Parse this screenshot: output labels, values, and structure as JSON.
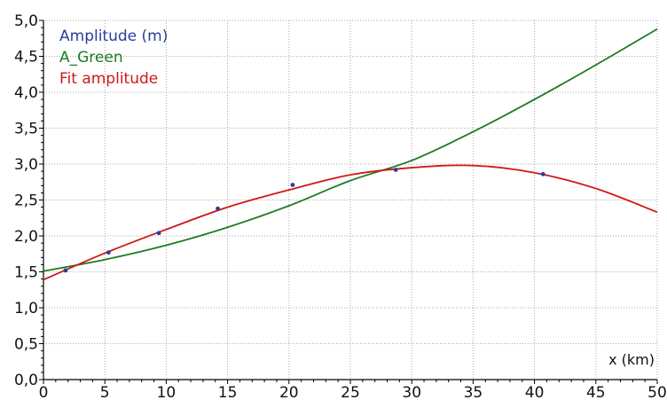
{
  "chart_data": {
    "type": "line",
    "xlabel": "x (km)",
    "ylabel": "",
    "xlim": [
      0,
      50
    ],
    "ylim": [
      0,
      5
    ],
    "grid": true,
    "legend_position": "top-left",
    "x_ticks": [
      "0",
      "5",
      "10",
      "15",
      "20",
      "25",
      "30",
      "35",
      "40",
      "45",
      "50"
    ],
    "y_ticks": [
      "0,0",
      "0,5",
      "1,0",
      "1,5",
      "2,0",
      "2,5",
      "3,0",
      "3,5",
      "4,0",
      "4,5",
      "5,0"
    ],
    "series": [
      {
        "name": "Amplitude (m)",
        "kind": "scatter",
        "color": "#2a3d9c",
        "points": [
          {
            "x": 1.8,
            "y": 1.52
          },
          {
            "x": 5.3,
            "y": 1.77
          },
          {
            "x": 9.4,
            "y": 2.04
          },
          {
            "x": 14.2,
            "y": 2.38
          },
          {
            "x": 20.3,
            "y": 2.71
          },
          {
            "x": 28.7,
            "y": 2.92
          },
          {
            "x": 40.7,
            "y": 2.86
          }
        ]
      },
      {
        "name": "A_Green",
        "kind": "line",
        "color": "#1e7a22",
        "x": [
          0,
          5,
          10,
          15,
          20,
          25,
          30,
          35,
          40,
          45,
          50
        ],
        "y": [
          1.51,
          1.67,
          1.87,
          2.12,
          2.42,
          2.77,
          3.05,
          3.45,
          3.9,
          4.38,
          4.88
        ]
      },
      {
        "name": "Fit amplitude",
        "kind": "line",
        "color": "#d01818",
        "x": [
          0,
          5,
          10,
          15,
          20,
          25,
          30,
          35,
          40,
          45,
          50
        ],
        "y": [
          1.39,
          1.76,
          2.09,
          2.4,
          2.64,
          2.85,
          2.95,
          2.98,
          2.88,
          2.66,
          2.33
        ]
      }
    ]
  }
}
